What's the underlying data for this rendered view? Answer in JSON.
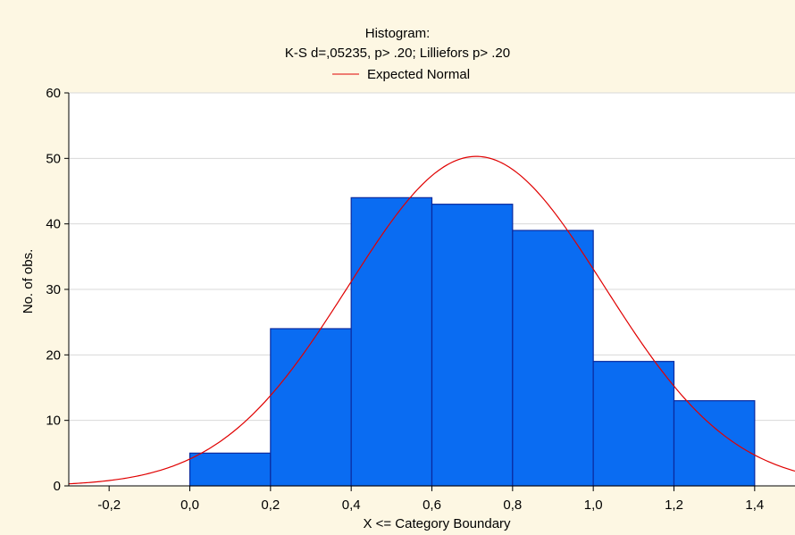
{
  "colors": {
    "background": "#FDF7E3",
    "plot_background": "#FFFFFF",
    "bar_fill": "#0A6CF2",
    "bar_stroke": "#0A2A9E",
    "curve": "#E00000",
    "grid": "#D8D8D8",
    "axis": "#000000"
  },
  "chart_data": {
    "type": "bar",
    "title": "Histogram:",
    "subtitle": "K-S d=,05235, p> .20; Lilliefors p> .20",
    "xlabel": "X <= Category Boundary",
    "ylabel": "No. of obs.",
    "xlim": [
      -0.3,
      1.5
    ],
    "ylim": [
      0,
      60
    ],
    "grid": true,
    "legend_position": "top-center",
    "x_ticks": [
      -0.2,
      0.0,
      0.2,
      0.4,
      0.6,
      0.8,
      1.0,
      1.2,
      1.4
    ],
    "x_tick_labels": [
      "-0,2",
      "0,0",
      "0,2",
      "0,4",
      "0,6",
      "0,8",
      "1,0",
      "1,2",
      "1,4"
    ],
    "y_ticks": [
      0,
      10,
      20,
      30,
      40,
      50,
      60
    ],
    "y_tick_labels": [
      "0",
      "10",
      "20",
      "30",
      "40",
      "50",
      "60"
    ],
    "bins": [
      {
        "from": 0.0,
        "to": 0.2,
        "count": 5
      },
      {
        "from": 0.2,
        "to": 0.4,
        "count": 24
      },
      {
        "from": 0.4,
        "to": 0.6,
        "count": 44
      },
      {
        "from": 0.6,
        "to": 0.8,
        "count": 43
      },
      {
        "from": 0.8,
        "to": 1.0,
        "count": 39
      },
      {
        "from": 1.0,
        "to": 1.2,
        "count": 19
      },
      {
        "from": 1.2,
        "to": 1.4,
        "count": 13
      }
    ],
    "series": [
      {
        "name": "Expected Normal",
        "type": "line",
        "mean": 0.71,
        "sd": 0.317,
        "peak": 50.3
      }
    ]
  }
}
